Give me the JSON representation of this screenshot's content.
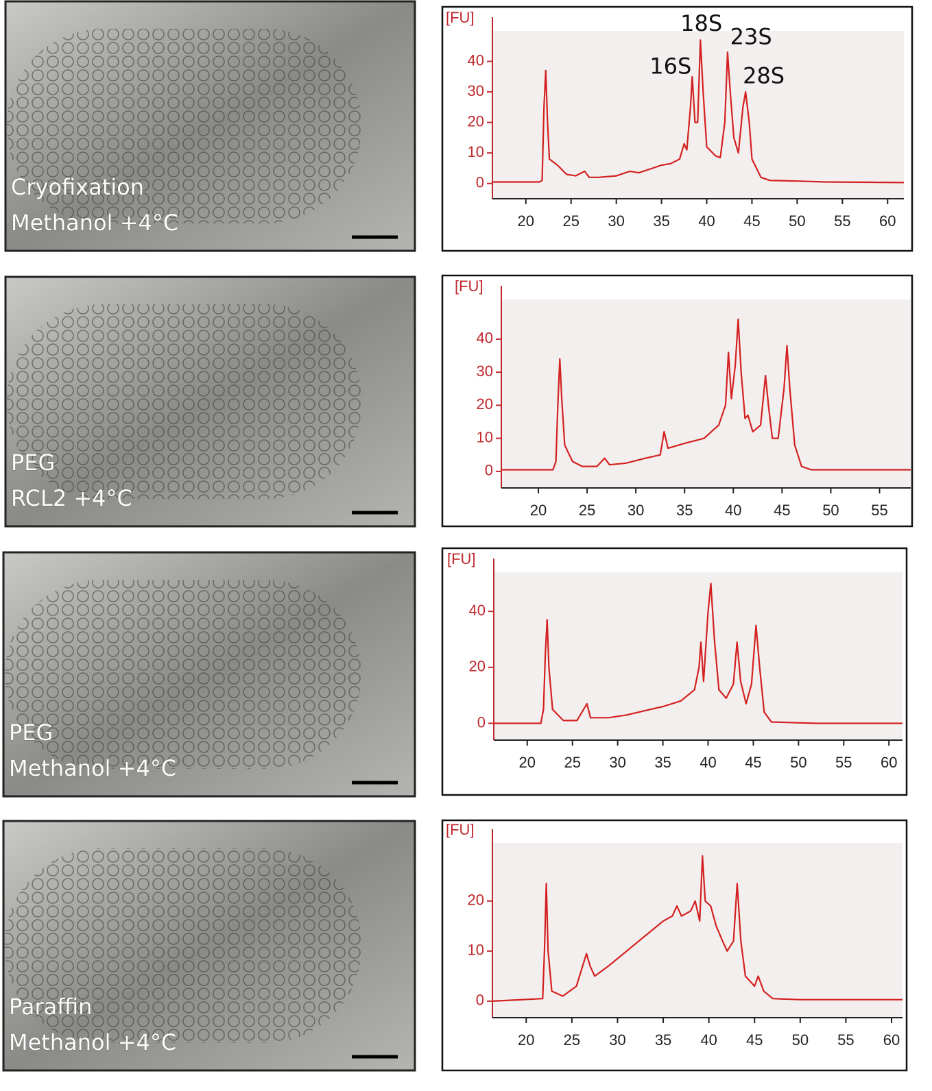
{
  "micrographs": [
    {
      "lines": [
        "Cryofixation",
        "Methanol +4°C"
      ]
    },
    {
      "lines": [
        "PEG",
        "RCL2 +4°C"
      ]
    },
    {
      "lines": [
        "PEG",
        "Methanol +4°C"
      ]
    },
    {
      "lines": [
        "Paraffin",
        "Methanol +4°C"
      ]
    }
  ],
  "chart_data": [
    {
      "type": "line",
      "y_label": "[FU]",
      "color": "#d42020",
      "x": [
        16.3,
        21.5,
        21.8,
        22.0,
        22.2,
        22.4,
        22.6,
        23.5,
        24.5,
        25.5,
        26.5,
        27,
        28,
        30,
        31.5,
        32.5,
        34,
        35,
        36,
        37,
        37.5,
        37.8,
        38.2,
        38.4,
        38.7,
        39.0,
        39.3,
        39.6,
        40,
        41,
        41.5,
        42.0,
        42.3,
        42.6,
        43,
        43.5,
        44,
        44.3,
        44.7,
        45,
        46,
        47,
        50,
        53,
        61.8
      ],
      "values": [
        0.5,
        0.5,
        1,
        25,
        37,
        20,
        8,
        6,
        3,
        2.5,
        4,
        2,
        2,
        2.5,
        4,
        3.5,
        5,
        6,
        6.5,
        8,
        13,
        11,
        25,
        35,
        20,
        20,
        47,
        30,
        12,
        9,
        8.5,
        20,
        43,
        30,
        15,
        10,
        25,
        30,
        20,
        8,
        2,
        1,
        0.8,
        0.5,
        0.3
      ],
      "xlim": [
        16.3,
        61.8
      ],
      "ylim": [
        -5,
        50
      ],
      "xticks": [
        20,
        25,
        30,
        35,
        40,
        45,
        50,
        55,
        60
      ],
      "yticks": [
        0,
        10,
        20,
        30,
        40
      ],
      "annotations": [
        {
          "text": "16S",
          "x": 36,
          "y": 38
        },
        {
          "text": "18S",
          "x": 39.4,
          "y": 52
        },
        {
          "text": "23S",
          "x": 44.9,
          "y": 47.6
        },
        {
          "text": "28S",
          "x": 46.3,
          "y": 34.8
        }
      ]
    },
    {
      "type": "line",
      "y_label": "[FU]",
      "color": "#d42020",
      "x": [
        16.2,
        21.5,
        21.8,
        22.0,
        22.2,
        22.4,
        22.7,
        23.5,
        24.5,
        26,
        26.8,
        27.3,
        29,
        31,
        32.5,
        32.9,
        33.3,
        35,
        37,
        38.5,
        39.2,
        39.5,
        39.8,
        40.2,
        40.5,
        40.8,
        41.2,
        41.5,
        42,
        42.8,
        43.3,
        43.6,
        44,
        44.6,
        45.2,
        45.5,
        45.8,
        46.3,
        47,
        48,
        58.2
      ],
      "values": [
        0.5,
        0.5,
        3,
        20,
        34,
        22,
        8,
        3,
        1.5,
        1.5,
        4,
        2,
        2.5,
        4,
        5,
        12,
        7,
        8.5,
        10,
        14,
        20,
        36,
        22,
        32,
        46,
        30,
        16,
        17,
        12,
        14,
        29,
        20,
        10,
        10,
        25,
        38,
        25,
        8,
        1.5,
        0.5,
        0.5
      ],
      "xlim": [
        16.2,
        58.2
      ],
      "ylim": [
        -5,
        52
      ],
      "xticks": [
        20,
        25,
        30,
        35,
        40,
        45,
        50,
        55
      ],
      "yticks": [
        0,
        10,
        20,
        30,
        40
      ]
    },
    {
      "type": "line",
      "y_label": "[FU]",
      "color": "#d42020",
      "x": [
        16.3,
        21.5,
        21.8,
        22.0,
        22.2,
        22.4,
        22.8,
        24,
        25.5,
        26.6,
        27,
        29,
        31,
        33,
        35,
        37,
        38.5,
        39,
        39.2,
        39.5,
        40.0,
        40.3,
        40.7,
        41.2,
        42,
        42.8,
        43.2,
        43.6,
        44.2,
        44.8,
        45.3,
        45.7,
        46.2,
        47,
        52,
        61.5
      ],
      "values": [
        0,
        0,
        5,
        25,
        37,
        20,
        5,
        1,
        1,
        7,
        2,
        2,
        3,
        4.5,
        6,
        8,
        12,
        20,
        29,
        15,
        40,
        50,
        30,
        12,
        9,
        14,
        29,
        15,
        7,
        14,
        35,
        20,
        4,
        0.5,
        0,
        0
      ],
      "xlim": [
        16.3,
        61.5
      ],
      "ylim": [
        -6,
        54
      ],
      "xticks": [
        20,
        25,
        30,
        35,
        40,
        45,
        50,
        55,
        60
      ],
      "yticks": [
        0,
        20,
        40
      ]
    },
    {
      "type": "line",
      "y_label": "[FU]",
      "color": "#d42020",
      "x": [
        16.3,
        21.8,
        22.0,
        22.2,
        22.4,
        22.8,
        24,
        25.5,
        26.6,
        27,
        27.5,
        29,
        31,
        33,
        35,
        36,
        36.5,
        37,
        38,
        38.5,
        39,
        39.3,
        39.6,
        40.2,
        40.8,
        41.5,
        42,
        42.7,
        43.1,
        43.5,
        44,
        45,
        45.4,
        46,
        47,
        50,
        61.2
      ],
      "values": [
        0,
        0.5,
        10,
        23.5,
        10,
        2,
        1,
        3,
        9.5,
        7,
        5,
        7,
        10,
        13,
        16,
        17,
        19,
        17,
        18,
        20,
        16,
        29,
        20,
        19,
        15,
        12,
        10,
        12,
        23.5,
        12,
        5,
        3,
        5,
        2,
        0.5,
        0.3,
        0.3
      ],
      "xlim": [
        16.3,
        61.2
      ],
      "ylim": [
        -3.3,
        31.6
      ],
      "xticks": [
        20,
        25,
        30,
        35,
        40,
        45,
        50,
        55,
        60
      ],
      "yticks": [
        0,
        10,
        20
      ]
    }
  ]
}
